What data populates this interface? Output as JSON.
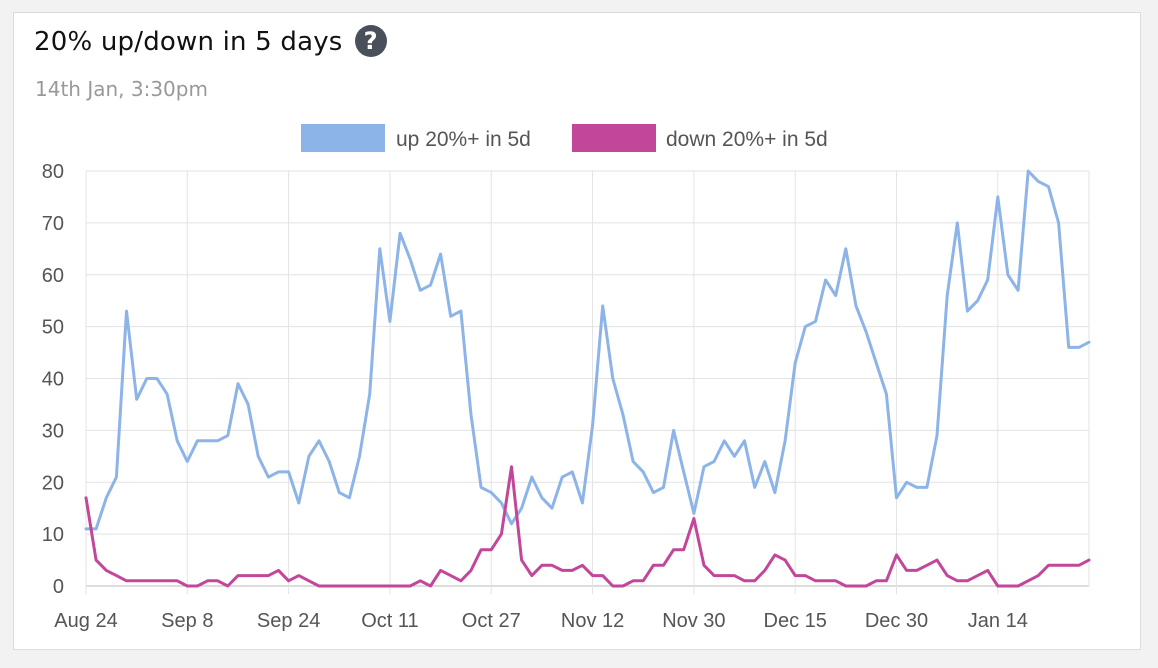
{
  "card": {
    "title": "20% up/down in 5 days",
    "help_icon": "question-circle-icon",
    "help_glyph": "?",
    "timestamp": "14th Jan, 3:30pm"
  },
  "chart_data": {
    "type": "line",
    "title": "20% up/down in 5 days",
    "legend_position": "top-center",
    "grid": true,
    "ylim": [
      0,
      80
    ],
    "yticks": [
      0,
      10,
      20,
      30,
      40,
      50,
      60,
      70,
      80
    ],
    "xtick_labels": [
      "Aug 24",
      "Sep 8",
      "Sep 24",
      "Oct 11",
      "Oct 27",
      "Nov 12",
      "Nov 30",
      "Dec 15",
      "Dec 30",
      "Jan 14"
    ],
    "xtick_index": [
      0,
      10,
      20,
      30,
      40,
      50,
      60,
      70,
      80,
      90
    ],
    "series": [
      {
        "name": "up 20%+ in 5d",
        "color": "#8db4e8",
        "values": [
          11,
          11,
          17,
          21,
          53,
          36,
          40,
          40,
          37,
          28,
          24,
          28,
          28,
          28,
          29,
          39,
          35,
          25,
          21,
          22,
          22,
          16,
          25,
          28,
          24,
          18,
          17,
          25,
          37,
          65,
          51,
          68,
          63,
          57,
          58,
          64,
          52,
          53,
          33,
          19,
          18,
          16,
          12,
          15,
          21,
          17,
          15,
          21,
          22,
          16,
          31,
          54,
          40,
          33,
          24,
          22,
          18,
          19,
          30,
          22,
          14,
          23,
          24,
          28,
          25,
          28,
          19,
          24,
          18,
          28,
          43,
          50,
          51,
          59,
          56,
          65,
          54,
          49,
          43,
          37,
          17,
          20,
          19,
          19,
          29,
          56,
          70,
          53,
          55,
          59,
          75,
          60,
          57,
          80,
          78,
          77,
          70,
          46,
          46,
          47
        ]
      },
      {
        "name": "down 20%+ in 5d",
        "color": "#c2479b",
        "values": [
          17,
          5,
          3,
          2,
          1,
          1,
          1,
          1,
          1,
          1,
          0,
          0,
          1,
          1,
          0,
          2,
          2,
          2,
          2,
          3,
          1,
          2,
          1,
          0,
          0,
          0,
          0,
          0,
          0,
          0,
          0,
          0,
          0,
          1,
          0,
          3,
          2,
          1,
          3,
          7,
          7,
          10,
          23,
          5,
          2,
          4,
          4,
          3,
          3,
          4,
          2,
          2,
          0,
          0,
          1,
          1,
          4,
          4,
          7,
          7,
          13,
          4,
          2,
          2,
          2,
          1,
          1,
          3,
          6,
          5,
          2,
          2,
          1,
          1,
          1,
          0,
          0,
          0,
          1,
          1,
          6,
          3,
          3,
          4,
          5,
          2,
          1,
          1,
          2,
          3,
          0,
          0,
          0,
          1,
          2,
          4,
          4,
          4,
          4,
          5
        ]
      }
    ]
  }
}
